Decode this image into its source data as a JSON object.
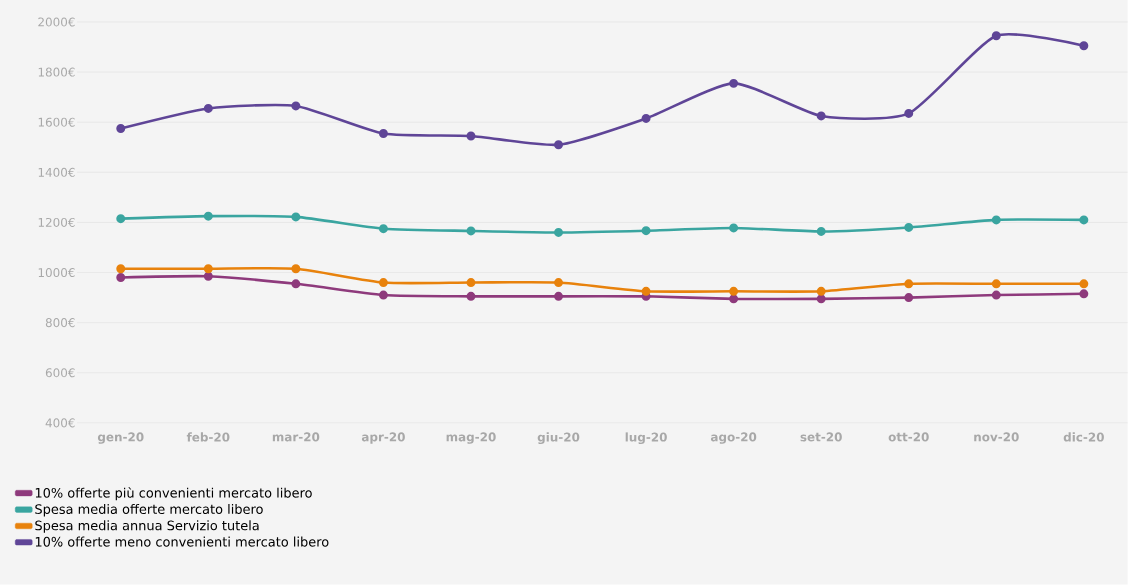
{
  "chart_data": {
    "type": "line",
    "categories": [
      "gen-20",
      "feb-20",
      "mar-20",
      "apr-20",
      "mag-20",
      "giu-20",
      "lug-20",
      "ago-20",
      "set-20",
      "ott-20",
      "nov-20",
      "dic-20"
    ],
    "series": [
      {
        "name": "10% offerte più convenienti mercato libero",
        "color": "#8e3a7c",
        "values": [
          980,
          985,
          955,
          910,
          905,
          905,
          905,
          895,
          895,
          900,
          910,
          915
        ]
      },
      {
        "name": "Spesa media offerte mercato libero",
        "color": "#3aa5a0",
        "values": [
          1215,
          1225,
          1222,
          1175,
          1166,
          1160,
          1167,
          1178,
          1164,
          1180,
          1210,
          1210
        ]
      },
      {
        "name": "Spesa media annua Servizio tutela",
        "color": "#e8820c",
        "values": [
          1015,
          1015,
          1015,
          960,
          960,
          960,
          925,
          925,
          925,
          955,
          955,
          955
        ]
      },
      {
        "name": "10% offerte meno convenienti mercato libero",
        "color": "#5f4597",
        "values": [
          1575,
          1655,
          1665,
          1555,
          1545,
          1510,
          1615,
          1755,
          1625,
          1635,
          1945,
          1905
        ]
      }
    ],
    "ylim": [
      400,
      2000
    ],
    "yticks": [
      {
        "value": 400,
        "label": "400€"
      },
      {
        "value": 600,
        "label": "600€"
      },
      {
        "value": 800,
        "label": "800€"
      },
      {
        "value": 1000,
        "label": "1000€"
      },
      {
        "value": 1200,
        "label": "1200€"
      },
      {
        "value": 1400,
        "label": "1400€"
      },
      {
        "value": 1600,
        "label": "1600€"
      },
      {
        "value": 1800,
        "label": "1800€"
      },
      {
        "value": 2000,
        "label": "2000€"
      }
    ],
    "grid": "y",
    "legend": "bottom left",
    "marker": "circle",
    "line_style": "solid"
  }
}
